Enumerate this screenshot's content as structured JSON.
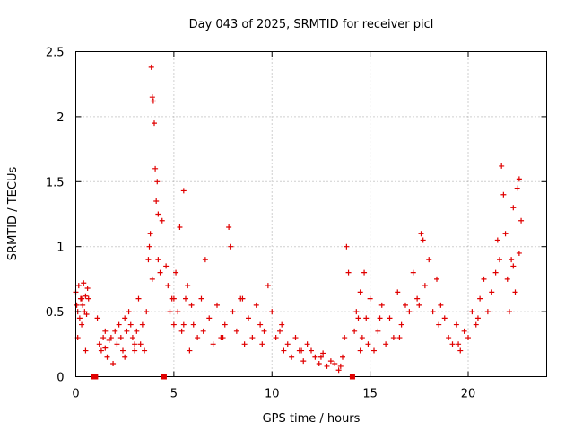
{
  "chart_data": {
    "type": "scatter",
    "title": "Day 043 of 2025, SRMTID for receiver picl",
    "xlabel": "GPS time / hours",
    "ylabel": "SRMTID / TECUs",
    "xlim": [
      0,
      24
    ],
    "ylim": [
      0,
      2.5
    ],
    "xticks": [
      0,
      5,
      10,
      15,
      20
    ],
    "xtick_labels": [
      "0",
      "5",
      "10",
      "15",
      "20"
    ],
    "yticks": [
      0,
      0.5,
      1,
      1.5,
      2,
      2.5
    ],
    "ytick_labels": [
      "0",
      "0.5",
      "1",
      "1.5",
      "2",
      "2.5"
    ],
    "grid": true,
    "marker": "plus",
    "color": "#e00000",
    "gap_markers_x": [
      0.9,
      1.0,
      4.5,
      14.1
    ],
    "series": [
      {
        "name": "SRMTID",
        "x": [
          0.0,
          0.05,
          0.1,
          0.15,
          0.2,
          0.25,
          0.3,
          0.35,
          0.4,
          0.45,
          0.5,
          0.55,
          0.6,
          0.65,
          1.1,
          1.2,
          1.3,
          1.4,
          1.5,
          1.6,
          1.7,
          1.8,
          1.9,
          2.0,
          2.1,
          2.2,
          2.3,
          2.4,
          2.5,
          2.6,
          2.7,
          2.8,
          2.9,
          3.0,
          3.1,
          3.2,
          3.3,
          3.4,
          3.5,
          3.6,
          3.7,
          3.75,
          3.8,
          3.85,
          3.9,
          3.95,
          4.0,
          4.05,
          4.1,
          4.15,
          4.2,
          4.3,
          4.4,
          4.6,
          4.7,
          4.8,
          4.9,
          5.0,
          5.1,
          5.2,
          5.3,
          5.4,
          5.5,
          5.6,
          5.7,
          5.8,
          5.9,
          6.0,
          6.2,
          6.4,
          6.6,
          6.8,
          7.0,
          7.2,
          7.4,
          7.6,
          7.8,
          7.9,
          8.0,
          8.2,
          8.4,
          8.6,
          8.8,
          9.0,
          9.2,
          9.4,
          9.6,
          9.8,
          10.0,
          10.2,
          10.4,
          10.6,
          10.8,
          11.0,
          11.2,
          11.4,
          11.6,
          11.8,
          12.0,
          12.2,
          12.4,
          12.6,
          12.8,
          13.0,
          13.2,
          13.4,
          13.6,
          13.7,
          13.8,
          13.9,
          14.2,
          14.3,
          14.4,
          14.5,
          14.6,
          14.7,
          14.8,
          14.9,
          15.0,
          15.2,
          15.4,
          15.6,
          15.8,
          16.0,
          16.2,
          16.4,
          16.6,
          16.8,
          17.0,
          17.2,
          17.4,
          17.6,
          17.7,
          17.8,
          18.0,
          18.2,
          18.4,
          18.6,
          18.8,
          19.0,
          19.2,
          19.4,
          19.6,
          19.8,
          20.0,
          20.2,
          20.4,
          20.6,
          20.8,
          21.0,
          21.2,
          21.4,
          21.6,
          21.7,
          21.8,
          21.9,
          22.0,
          22.1,
          22.2,
          22.3,
          22.4,
          22.5,
          22.6,
          22.7,
          0.1,
          0.3,
          0.5,
          1.5,
          2.5,
          3.0,
          3.9,
          4.2,
          5.0,
          5.5,
          6.5,
          7.5,
          8.5,
          9.5,
          10.5,
          11.5,
          12.5,
          13.5,
          14.5,
          15.5,
          16.5,
          17.5,
          18.5,
          19.5,
          20.5,
          21.5,
          22.3,
          22.6
        ],
        "y": [
          0.65,
          0.55,
          0.5,
          0.7,
          0.45,
          0.6,
          0.4,
          0.55,
          0.72,
          0.5,
          0.62,
          0.48,
          0.68,
          0.6,
          0.45,
          0.25,
          0.2,
          0.3,
          0.22,
          0.15,
          0.28,
          0.3,
          0.1,
          0.35,
          0.25,
          0.4,
          0.3,
          0.2,
          0.45,
          0.35,
          0.5,
          0.4,
          0.3,
          0.25,
          0.35,
          0.6,
          0.25,
          0.4,
          0.2,
          0.5,
          0.9,
          1.0,
          1.1,
          2.38,
          2.15,
          2.12,
          1.95,
          1.6,
          1.35,
          1.5,
          1.25,
          0.8,
          1.2,
          0.85,
          0.7,
          0.5,
          0.6,
          0.4,
          0.8,
          0.5,
          1.15,
          0.35,
          1.43,
          0.6,
          0.7,
          0.2,
          0.55,
          0.4,
          0.3,
          0.6,
          0.9,
          0.45,
          0.25,
          0.55,
          0.3,
          0.4,
          1.15,
          1.0,
          0.5,
          0.35,
          0.6,
          0.25,
          0.45,
          0.3,
          0.55,
          0.4,
          0.35,
          0.7,
          0.5,
          0.3,
          0.35,
          0.2,
          0.25,
          0.15,
          0.3,
          0.2,
          0.12,
          0.25,
          0.2,
          0.15,
          0.1,
          0.18,
          0.08,
          0.12,
          0.1,
          0.05,
          0.15,
          0.3,
          1.0,
          0.8,
          0.35,
          0.5,
          0.45,
          0.65,
          0.3,
          0.8,
          0.45,
          0.25,
          0.6,
          0.2,
          0.35,
          0.55,
          0.25,
          0.45,
          0.3,
          0.65,
          0.4,
          0.55,
          0.5,
          0.8,
          0.6,
          1.1,
          1.05,
          0.7,
          0.9,
          0.5,
          0.75,
          0.55,
          0.45,
          0.3,
          0.25,
          0.4,
          0.2,
          0.35,
          0.3,
          0.5,
          0.4,
          0.6,
          0.75,
          0.5,
          0.65,
          0.8,
          0.9,
          1.62,
          1.4,
          1.1,
          0.75,
          0.5,
          0.9,
          1.3,
          0.65,
          1.45,
          1.52,
          1.2,
          0.3,
          0.6,
          0.2,
          0.35,
          0.15,
          0.2,
          0.75,
          0.9,
          0.6,
          0.4,
          0.35,
          0.3,
          0.6,
          0.25,
          0.4,
          0.2,
          0.15,
          0.08,
          0.2,
          0.45,
          0.3,
          0.55,
          0.4,
          0.25,
          0.45,
          1.05,
          0.85,
          0.95
        ]
      }
    ]
  }
}
